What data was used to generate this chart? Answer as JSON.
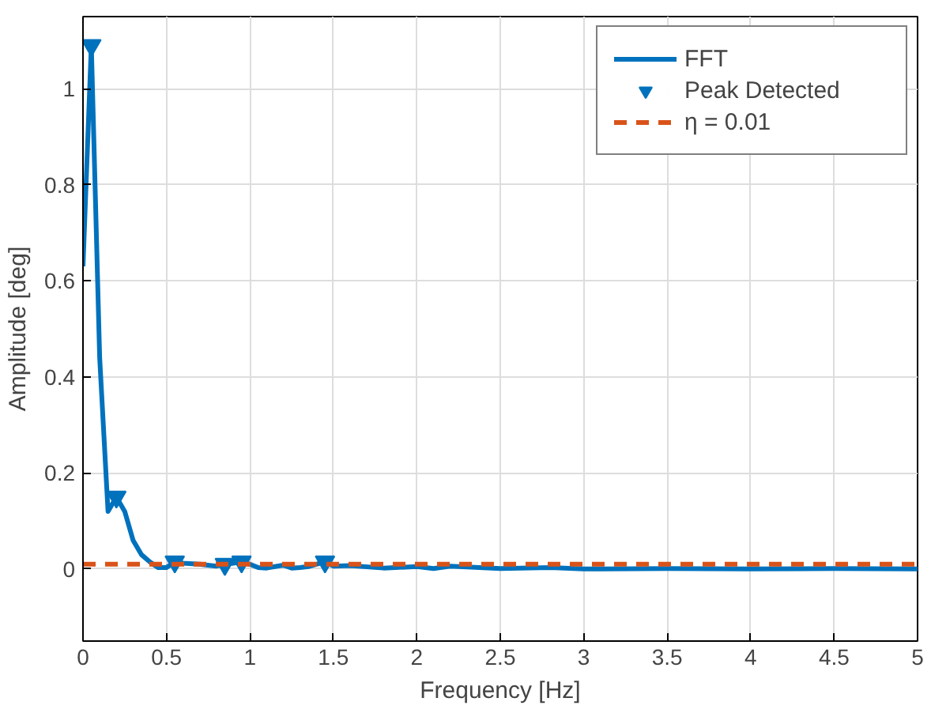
{
  "chart_data": {
    "type": "line",
    "xlabel": "Frequency [Hz]",
    "ylabel": "Amplitude [deg]",
    "xlim": [
      0,
      5
    ],
    "ylim": [
      -0.15,
      1.15
    ],
    "xticks": [
      0,
      0.5,
      1,
      1.5,
      2,
      2.5,
      3,
      3.5,
      4,
      4.5,
      5
    ],
    "yticks": [
      0,
      0.2,
      0.4,
      0.6,
      0.8,
      1
    ],
    "grid": true,
    "legend": "top right",
    "series": [
      {
        "name": "FFT",
        "color": "#0072bd",
        "marker": "none",
        "line_style": "solid",
        "x": [
          0,
          0.05,
          0.1,
          0.15,
          0.2,
          0.25,
          0.3,
          0.35,
          0.4,
          0.45,
          0.5,
          0.55,
          0.6,
          0.7,
          0.8,
          0.85,
          0.9,
          0.95,
          1.0,
          1.05,
          1.1,
          1.15,
          1.2,
          1.25,
          1.3,
          1.35,
          1.45,
          1.5,
          1.6,
          1.8,
          2.0,
          2.1,
          2.2,
          2.5,
          2.8,
          3.0,
          3.5,
          4.0,
          4.5,
          5.0
        ],
        "values": [
          0.63,
          1.09,
          0.44,
          0.12,
          0.15,
          0.12,
          0.06,
          0.03,
          0.015,
          0.003,
          0.003,
          0.015,
          0.012,
          0.01,
          0.006,
          0.01,
          0.012,
          0.015,
          0.01,
          0.003,
          0.002,
          0.005,
          0.008,
          0.002,
          0.003,
          0.005,
          0.015,
          0.006,
          0.007,
          0.002,
          0.005,
          0.001,
          0.006,
          0.001,
          0.003,
          0.0,
          0.001,
          0.0,
          0.001,
          0.0
        ]
      },
      {
        "name": "Peak Detected",
        "type": "scatter",
        "color": "#0072bd",
        "marker": "triangle",
        "x": [
          0.05,
          0.2,
          0.55,
          0.85,
          0.95,
          1.45
        ],
        "values": [
          1.09,
          0.15,
          0.015,
          0.01,
          0.015,
          0.015
        ]
      }
    ],
    "ref_lines": [
      {
        "axis": "y",
        "value": 0.01,
        "label": "η = 0.01",
        "color": "#d95319",
        "line_style": "dashed"
      }
    ]
  }
}
